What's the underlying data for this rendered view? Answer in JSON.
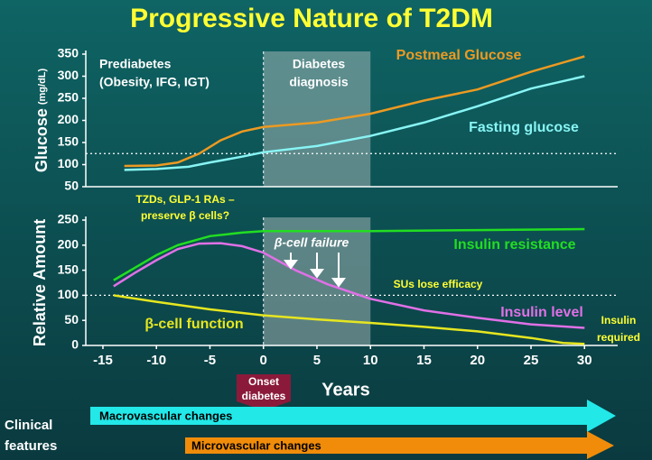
{
  "title": "Progressive Nature of T2DM",
  "chart_data": [
    {
      "type": "line",
      "ylabel": "Glucose",
      "ylabel_unit": "(mg/dL)",
      "xlim": [
        -16.6,
        33.1
      ],
      "ylim": [
        50,
        350
      ],
      "yticks": [
        50,
        100,
        150,
        200,
        250,
        300,
        350
      ],
      "shade": [
        0,
        10
      ],
      "vline": 0,
      "ref_line": 125,
      "annotations": [
        "Prediabetes",
        "(Obesity, IFG, IGT)",
        "Diabetes",
        "diagnosis"
      ],
      "series": [
        {
          "name": "Postmeal Glucose",
          "color": "#ec9a22",
          "x": [
            -13,
            -10,
            -8,
            -6,
            -4,
            -2,
            0,
            5,
            10,
            15,
            20,
            25,
            30
          ],
          "values": [
            97,
            98,
            105,
            125,
            155,
            175,
            185,
            195,
            215,
            245,
            270,
            310,
            345
          ]
        },
        {
          "name": "Fasting glucose",
          "color": "#88f4f4",
          "x": [
            -13,
            -10,
            -7,
            -5,
            -2,
            0,
            5,
            10,
            15,
            20,
            25,
            30
          ],
          "values": [
            88,
            90,
            95,
            105,
            118,
            128,
            142,
            165,
            195,
            232,
            272,
            300
          ]
        }
      ]
    },
    {
      "type": "line",
      "ylabel": "Relative Amount",
      "xlabel": "Years",
      "xlim": [
        -16.6,
        33.1
      ],
      "ylim": [
        0,
        250
      ],
      "yticks": [
        0,
        50,
        100,
        150,
        200,
        250
      ],
      "xticks": [
        -15,
        -10,
        -5,
        0,
        5,
        10,
        15,
        20,
        25,
        30
      ],
      "shade": [
        0,
        10
      ],
      "vline": 0,
      "ref_line": 100,
      "annotations": [
        "TZDs, GLP-1 RAs –",
        "preserve β cells?",
        "β-cell failure",
        "SUs lose efficacy",
        "Insulin",
        "required"
      ],
      "series": [
        {
          "name": "Insulin resistance",
          "color": "#22dd22",
          "x": [
            -14,
            -12,
            -10,
            -8,
            -5,
            -2,
            0,
            10,
            20,
            30
          ],
          "values": [
            130,
            155,
            180,
            200,
            218,
            225,
            228,
            228,
            230,
            232
          ]
        },
        {
          "name": "Insulin level",
          "color": "#e070e6",
          "x": [
            -14,
            -12,
            -10,
            -8,
            -6,
            -4,
            -2,
            0,
            3,
            6,
            10,
            15,
            20,
            25,
            30
          ],
          "values": [
            118,
            145,
            170,
            192,
            203,
            204,
            198,
            185,
            150,
            122,
            93,
            70,
            55,
            42,
            35
          ]
        },
        {
          "name": "β-cell function",
          "color": "#e6e620",
          "x": [
            -14,
            -10,
            -5,
            0,
            5,
            10,
            15,
            20,
            25,
            28,
            30
          ],
          "values": [
            100,
            87,
            72,
            60,
            52,
            45,
            37,
            28,
            15,
            5,
            3
          ]
        }
      ]
    }
  ],
  "onset_label": [
    "Onset",
    "diabetes"
  ],
  "clinical": {
    "label": [
      "Clinical",
      "features"
    ],
    "macro": "Macrovascular changes",
    "micro": "Microvascular changes"
  }
}
